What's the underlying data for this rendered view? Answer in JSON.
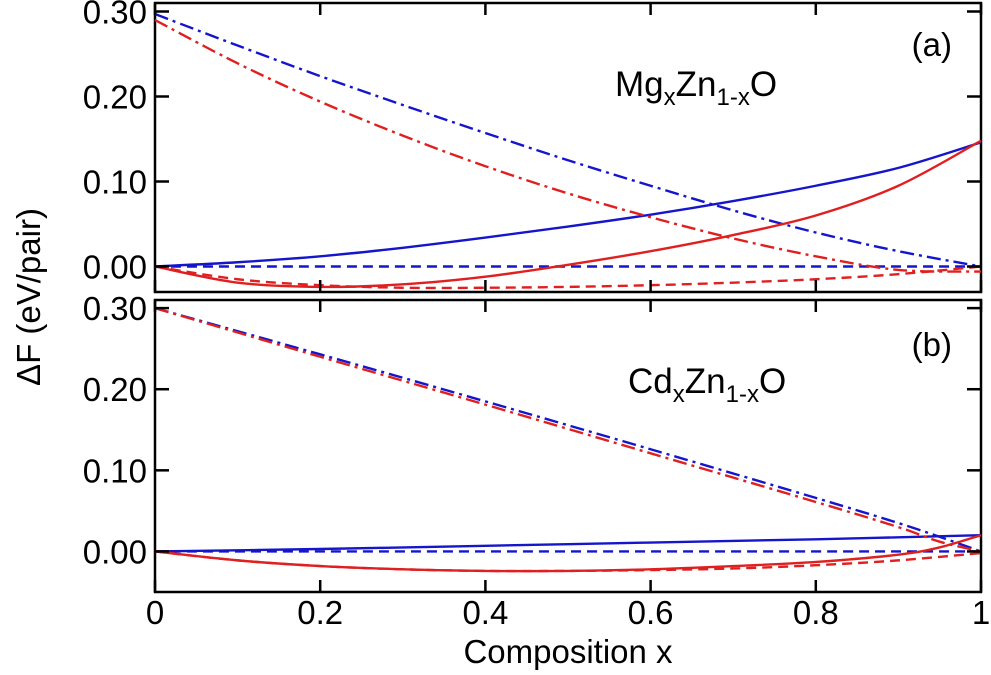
{
  "chart_data": {
    "type": "line",
    "xlabel": "Composition x",
    "ylabel": "ΔF (eV/pair)",
    "xlim": [
      0,
      1
    ],
    "xticks": [
      0,
      0.2,
      0.4,
      0.6,
      0.8,
      1
    ],
    "xtick_labels": [
      "0",
      "0.2",
      "0.4",
      "0.6",
      "0.8",
      "1"
    ],
    "panels": [
      {
        "tag": "(a)",
        "formula": {
          "base1": "Mg",
          "sub1": "x",
          "base2": "Zn",
          "sub2": "1-x",
          "base3": "O"
        },
        "ylim": [
          -0.03,
          0.31
        ],
        "yticks": [
          0.0,
          0.1,
          0.2,
          0.3
        ],
        "ytick_labels": [
          "0.00",
          "0.10",
          "0.20",
          "0.30"
        ],
        "series": [
          {
            "color": "#1515cc",
            "style": "solid",
            "x": [
              0,
              0.1,
              0.2,
              0.3,
              0.4,
              0.5,
              0.6,
              0.7,
              0.8,
              0.9,
              1.0
            ],
            "y": [
              0,
              0.005,
              0.012,
              0.022,
              0.034,
              0.047,
              0.061,
              0.077,
              0.095,
              0.116,
              0.146
            ]
          },
          {
            "color": "#1515cc",
            "style": "dash",
            "x": [
              0,
              1.0
            ],
            "y": [
              0,
              0
            ]
          },
          {
            "color": "#1515cc",
            "style": "dashdot",
            "x": [
              0,
              0.1,
              0.2,
              0.3,
              0.4,
              0.5,
              0.6,
              0.7,
              0.8,
              0.9,
              1.0
            ],
            "y": [
              0.297,
              0.26,
              0.224,
              0.19,
              0.157,
              0.125,
              0.095,
              0.066,
              0.04,
              0.018,
              0.0
            ]
          },
          {
            "color": "#e02020",
            "style": "solid",
            "x": [
              0,
              0.1,
              0.2,
              0.3,
              0.4,
              0.5,
              0.6,
              0.7,
              0.8,
              0.9,
              1.0
            ],
            "y": [
              0,
              -0.019,
              -0.024,
              -0.021,
              -0.012,
              0.002,
              0.018,
              0.037,
              0.06,
              0.095,
              0.148
            ]
          },
          {
            "color": "#e02020",
            "style": "dash",
            "x": [
              0,
              0.1,
              0.2,
              0.3,
              0.4,
              0.5,
              0.6,
              0.7,
              0.8,
              0.9,
              1.0
            ],
            "y": [
              0,
              -0.015,
              -0.022,
              -0.025,
              -0.025,
              -0.024,
              -0.022,
              -0.019,
              -0.015,
              -0.009,
              0.0
            ]
          },
          {
            "color": "#e02020",
            "style": "dashdot",
            "x": [
              0,
              0.1,
              0.2,
              0.3,
              0.4,
              0.5,
              0.6,
              0.7,
              0.8,
              0.9,
              1.0
            ],
            "y": [
              0.29,
              0.239,
              0.194,
              0.154,
              0.118,
              0.086,
              0.058,
              0.033,
              0.012,
              -0.004,
              -0.006
            ]
          }
        ]
      },
      {
        "tag": "(b)",
        "formula": {
          "base1": "Cd",
          "sub1": "x",
          "base2": "Zn",
          "sub2": "1-x",
          "base3": "O"
        },
        "ylim": [
          -0.05,
          0.31
        ],
        "yticks": [
          0.0,
          0.1,
          0.2,
          0.3
        ],
        "ytick_labels": [
          "0.00",
          "0.10",
          "0.20",
          "0.30"
        ],
        "series": [
          {
            "color": "#1515cc",
            "style": "solid",
            "x": [
              0,
              0.2,
              0.4,
              0.6,
              0.8,
              1.0
            ],
            "y": [
              0,
              0.003,
              0.007,
              0.011,
              0.015,
              0.02
            ]
          },
          {
            "color": "#1515cc",
            "style": "dash",
            "x": [
              0,
              1.0
            ],
            "y": [
              0,
              0
            ]
          },
          {
            "color": "#1515cc",
            "style": "dashdot",
            "x": [
              0,
              0.2,
              0.4,
              0.6,
              0.8,
              0.9,
              0.95,
              1.0
            ],
            "y": [
              0.3,
              0.243,
              0.185,
              0.126,
              0.066,
              0.035,
              0.018,
              0.0
            ]
          },
          {
            "color": "#e02020",
            "style": "solid",
            "x": [
              0,
              0.1,
              0.2,
              0.3,
              0.4,
              0.5,
              0.6,
              0.7,
              0.8,
              0.9,
              0.95,
              1.0
            ],
            "y": [
              0,
              -0.011,
              -0.018,
              -0.022,
              -0.024,
              -0.024,
              -0.022,
              -0.018,
              -0.013,
              -0.004,
              0.005,
              0.02
            ]
          },
          {
            "color": "#e02020",
            "style": "dash",
            "x": [
              0,
              0.1,
              0.2,
              0.3,
              0.4,
              0.5,
              0.6,
              0.7,
              0.8,
              0.9,
              1.0
            ],
            "y": [
              0,
              -0.011,
              -0.018,
              -0.022,
              -0.024,
              -0.024,
              -0.023,
              -0.021,
              -0.017,
              -0.011,
              -0.002
            ]
          },
          {
            "color": "#e02020",
            "style": "dashdot",
            "x": [
              0,
              0.2,
              0.4,
              0.6,
              0.8,
              0.9,
              0.95,
              1.0
            ],
            "y": [
              0.3,
              0.24,
              0.181,
              0.121,
              0.061,
              0.03,
              0.012,
              0.0
            ]
          }
        ]
      }
    ]
  }
}
